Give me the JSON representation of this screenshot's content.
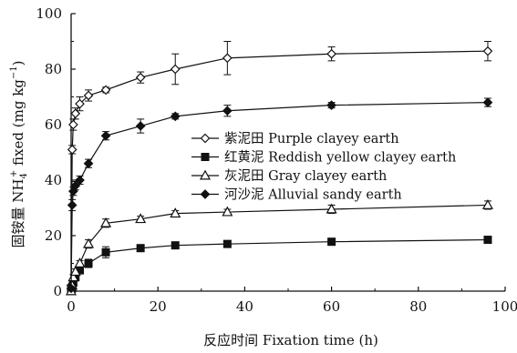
{
  "chart_data": {
    "type": "line",
    "xlabel": "反应时间  Fixation time (h)",
    "ylabel": {
      "prefix": "固铵量 NH",
      "sub": "4",
      "sup": "+",
      "mid": " fixed (mg  kg",
      "sup2": "−1",
      "suffix": ")"
    },
    "xlim": [
      0,
      100
    ],
    "ylim": [
      0,
      100
    ],
    "xticks": [
      "0",
      "20",
      "40",
      "60",
      "80",
      "100"
    ],
    "yticks": [
      "0",
      "20",
      "40",
      "60",
      "80",
      "100"
    ],
    "grid": false,
    "legend_position": "center-right",
    "x": [
      0,
      0.25,
      0.5,
      1,
      2,
      4,
      8,
      16,
      24,
      36,
      60,
      96
    ],
    "series": [
      {
        "name": "紫泥田 Purple clayey earth",
        "marker": "open-diamond",
        "values": [
          2,
          51,
          60,
          64,
          67.5,
          70.5,
          72.5,
          77,
          80,
          84,
          85.5,
          86.5
        ],
        "errors": [
          0.5,
          1.5,
          2,
          2,
          2.5,
          2,
          1,
          2,
          5.5,
          6,
          2.5,
          3.5
        ]
      },
      {
        "name": "红黄泥 Reddish yellow clayey earth",
        "marker": "filled-square",
        "values": [
          0,
          1,
          3,
          5,
          7.5,
          10,
          14,
          15.5,
          16.5,
          17,
          17.8,
          18.5
        ],
        "errors": [
          0,
          0.5,
          0.5,
          1,
          1,
          1.5,
          2,
          1,
          1,
          1,
          1,
          1
        ]
      },
      {
        "name": "灰泥田 Gray clayey earth",
        "marker": "open-triangle",
        "values": [
          0,
          2,
          5,
          7,
          10,
          17,
          24.5,
          26,
          28,
          28.5,
          29.5,
          31
        ],
        "errors": [
          0,
          1,
          1,
          1,
          1,
          1.5,
          1.5,
          1,
          1,
          1,
          1.5,
          1.5
        ]
      },
      {
        "name": "河沙泥 Alluvial sandy earth",
        "marker": "filled-diamond",
        "values": [
          1,
          31,
          36,
          38,
          40,
          46,
          56,
          59.5,
          63,
          65,
          67,
          68
        ],
        "errors": [
          0.5,
          2,
          1.5,
          1.5,
          1.5,
          1.5,
          1.5,
          2.5,
          1,
          2,
          1,
          1.5
        ]
      }
    ]
  }
}
